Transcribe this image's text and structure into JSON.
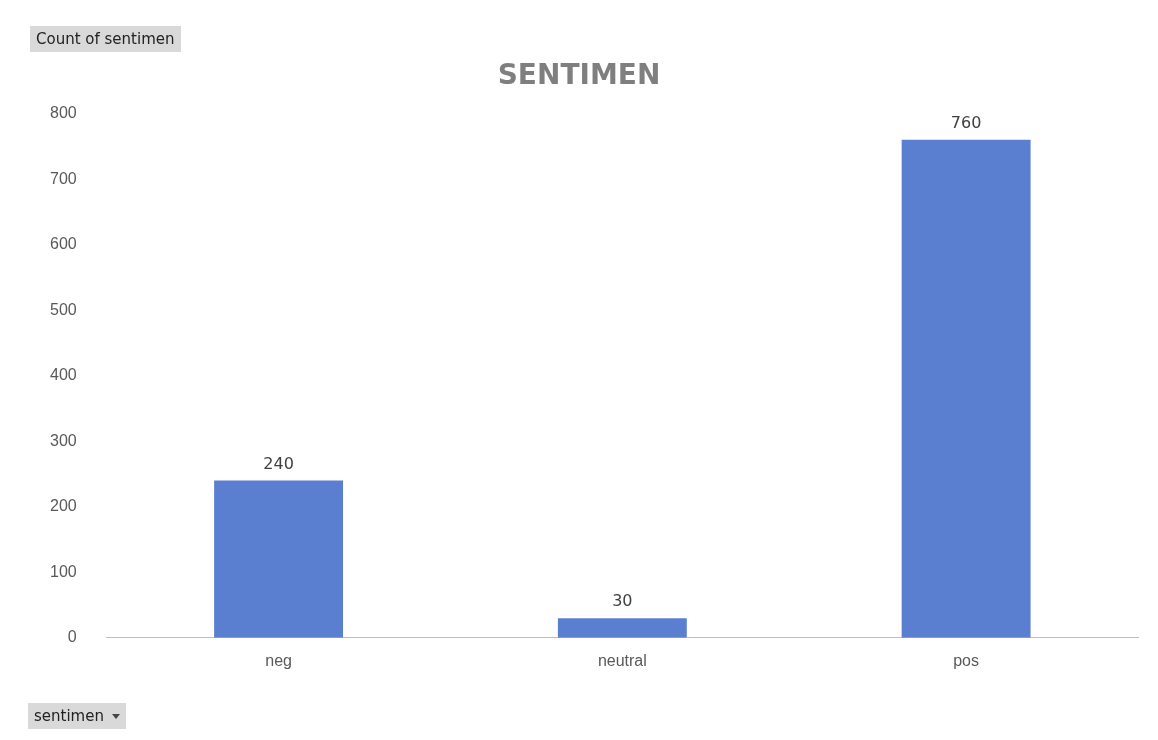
{
  "chart_data": {
    "type": "bar",
    "title": "SENTIMEN",
    "categories": [
      "neg",
      "neutral",
      "pos"
    ],
    "values": [
      240,
      30,
      760
    ],
    "color": "#5b7fd0",
    "ylim": [
      0,
      800
    ],
    "yticks": [
      0,
      100,
      200,
      300,
      400,
      500,
      600,
      700,
      800
    ],
    "grid": false,
    "legend": false,
    "data_labels": true,
    "annotations": [
      "Count of sentimen",
      "sentimen"
    ]
  }
}
